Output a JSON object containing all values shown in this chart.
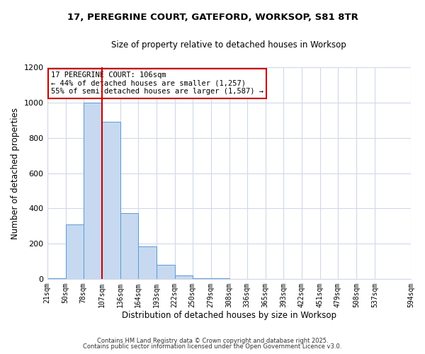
{
  "title": "17, PEREGRINE COURT, GATEFORD, WORKSOP, S81 8TR",
  "subtitle": "Size of property relative to detached houses in Worksop",
  "xlabel": "Distribution of detached houses by size in Worksop",
  "ylabel": "Number of detached properties",
  "bar_values": [
    5,
    310,
    1000,
    890,
    375,
    185,
    80,
    20,
    5,
    2,
    1,
    0,
    0,
    0,
    0,
    0,
    0,
    0,
    0
  ],
  "bin_edges": [
    21,
    50,
    78,
    107,
    136,
    164,
    193,
    222,
    250,
    279,
    308,
    336,
    365,
    393,
    422,
    451,
    479,
    508,
    537,
    594
  ],
  "bin_labels": [
    "21sqm",
    "50sqm",
    "78sqm",
    "107sqm",
    "136sqm",
    "164sqm",
    "193sqm",
    "222sqm",
    "250sqm",
    "279sqm",
    "308sqm",
    "336sqm",
    "365sqm",
    "393sqm",
    "422sqm",
    "451sqm",
    "479sqm",
    "508sqm",
    "537sqm",
    "594sqm"
  ],
  "bar_color": "#c6d9f0",
  "bar_edge_color": "#5b9bd5",
  "vline_x": 107,
  "vline_color": "#cc0000",
  "ylim": [
    0,
    1200
  ],
  "yticks": [
    0,
    200,
    400,
    600,
    800,
    1000,
    1200
  ],
  "annotation_title": "17 PEREGRINE COURT: 106sqm",
  "annotation_line1": "← 44% of detached houses are smaller (1,257)",
  "annotation_line2": "55% of semi-detached houses are larger (1,587) →",
  "annotation_box_color": "#ffffff",
  "annotation_box_edge": "#cc0000",
  "footer1": "Contains HM Land Registry data © Crown copyright and database right 2025.",
  "footer2": "Contains public sector information licensed under the Open Government Licence v3.0.",
  "background_color": "#ffffff",
  "grid_color": "#d0d8e8"
}
